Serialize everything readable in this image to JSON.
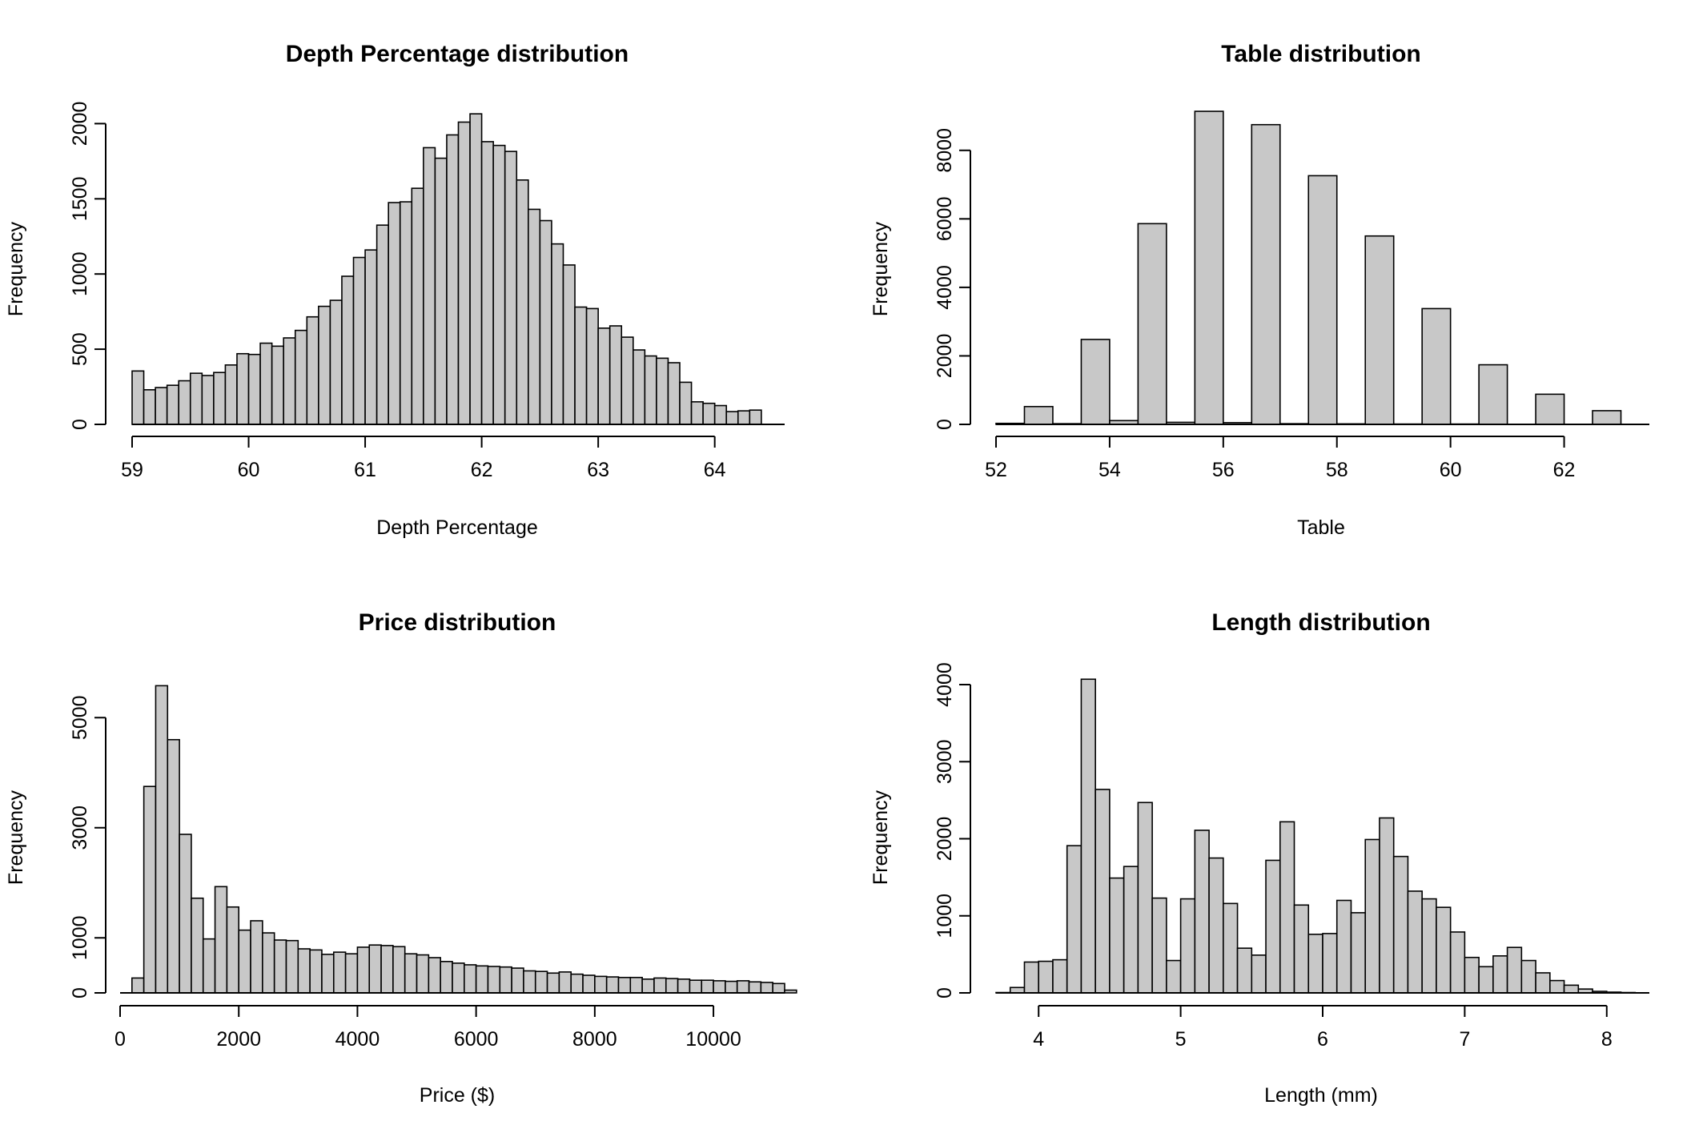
{
  "chart_data": [
    {
      "type": "bar",
      "title": "Depth Percentage distribution",
      "xlabel": "Depth Percentage",
      "ylabel": "Frequency",
      "bin_start": 59,
      "bin_width": 0.1,
      "values": [
        355,
        230,
        245,
        260,
        290,
        340,
        325,
        345,
        395,
        470,
        465,
        540,
        520,
        575,
        625,
        715,
        785,
        825,
        985,
        1110,
        1160,
        1325,
        1475,
        1480,
        1570,
        1840,
        1770,
        1925,
        2010,
        2065,
        1880,
        1855,
        1815,
        1625,
        1430,
        1355,
        1200,
        1060,
        780,
        770,
        640,
        655,
        580,
        495,
        455,
        440,
        410,
        280,
        150,
        140,
        125,
        85,
        90,
        95
      ],
      "xlim": [
        59,
        64.6
      ],
      "ylim": [
        0,
        2050
      ],
      "xticks": [
        59,
        60,
        61,
        62,
        63,
        64
      ],
      "yticks": [
        0,
        500,
        1000,
        1500,
        2000
      ],
      "xtick_labels": [
        "59",
        "60",
        "61",
        "62",
        "63",
        "64"
      ],
      "ytick_labels": [
        "0",
        "500",
        "1000",
        "1500",
        "2000"
      ]
    },
    {
      "type": "bar",
      "title": "Table distribution",
      "xlabel": "Table",
      "ylabel": "Frequency",
      "bin_start": 52,
      "bin_width": 0.5,
      "values": [
        30,
        520,
        20,
        2480,
        110,
        5860,
        60,
        9140,
        50,
        8750,
        20,
        7260,
        15,
        5500,
        10,
        3380,
        10,
        1740,
        0,
        880,
        0,
        400
      ],
      "xlim": [
        52,
        63.5
      ],
      "ylim": [
        0,
        9000
      ],
      "xticks": [
        52,
        54,
        56,
        58,
        60,
        62
      ],
      "yticks": [
        0,
        2000,
        4000,
        6000,
        8000
      ],
      "xtick_labels": [
        "52",
        "54",
        "56",
        "58",
        "60",
        "62"
      ],
      "ytick_labels": [
        "0",
        "2000",
        "4000",
        "6000",
        "8000"
      ]
    },
    {
      "type": "bar",
      "title": "Price distribution",
      "xlabel": "Price ($)",
      "ylabel": "Frequency",
      "bin_start": 200,
      "bin_width": 200,
      "values": [
        270,
        3750,
        5580,
        4600,
        2880,
        1720,
        980,
        1930,
        1560,
        1140,
        1310,
        1090,
        960,
        950,
        800,
        780,
        700,
        740,
        710,
        830,
        870,
        860,
        840,
        710,
        690,
        640,
        570,
        540,
        510,
        490,
        480,
        470,
        450,
        400,
        390,
        360,
        380,
        340,
        320,
        300,
        290,
        280,
        280,
        250,
        270,
        260,
        250,
        230,
        230,
        220,
        210,
        220,
        200,
        190,
        170,
        50
      ],
      "xlim": [
        0,
        11200
      ],
      "ylim": [
        0,
        5600
      ],
      "xticks": [
        0,
        2000,
        4000,
        6000,
        8000,
        10000
      ],
      "yticks": [
        0,
        1000,
        3000,
        5000
      ],
      "xtick_labels": [
        "0",
        "2000",
        "4000",
        "6000",
        "8000",
        "10000"
      ],
      "ytick_labels": [
        "0",
        "1000",
        "3000",
        "5000"
      ]
    },
    {
      "type": "bar",
      "title": "Length distribution",
      "xlabel": "Length (mm)",
      "ylabel": "Frequency",
      "bin_start": 3.7,
      "bin_width": 0.1,
      "values": [
        5,
        70,
        400,
        410,
        430,
        1910,
        4070,
        2640,
        1490,
        1640,
        2470,
        1230,
        420,
        1220,
        2110,
        1750,
        1160,
        580,
        490,
        1720,
        2220,
        1140,
        760,
        770,
        1200,
        1040,
        1990,
        2270,
        1770,
        1320,
        1220,
        1110,
        790,
        460,
        340,
        480,
        590,
        420,
        260,
        160,
        100,
        50,
        20,
        10,
        5,
        0
      ],
      "xlim": [
        3.7,
        8.3
      ],
      "ylim": [
        0,
        4000
      ],
      "xticks": [
        4,
        5,
        6,
        7,
        8
      ],
      "yticks": [
        0,
        1000,
        2000,
        3000,
        4000
      ],
      "xtick_labels": [
        "4",
        "5",
        "6",
        "7",
        "8"
      ],
      "ytick_labels": [
        "0",
        "1000",
        "2000",
        "3000",
        "4000"
      ]
    }
  ]
}
